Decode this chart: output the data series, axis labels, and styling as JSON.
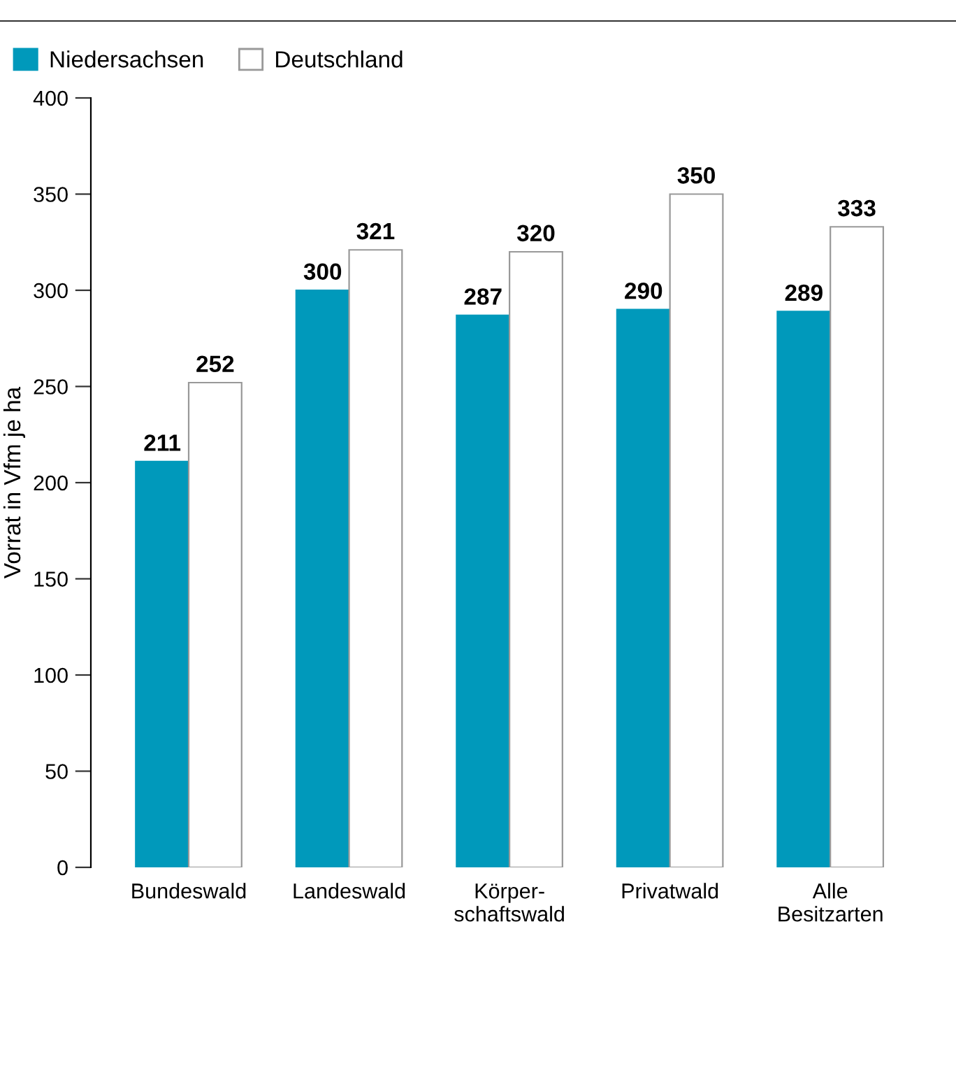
{
  "chart_data": {
    "type": "bar",
    "ylabel": "Vorrat in Vfm je ha",
    "categories": [
      "Bundeswald",
      "Landeswald",
      "Körper-\nschaftswald",
      "Privatwald",
      "Alle\nBesitzarten"
    ],
    "series": [
      {
        "name": "Niedersachsen",
        "color": "#0099bb",
        "values": [
          211,
          300,
          287,
          290,
          289
        ]
      },
      {
        "name": "Deutschland",
        "color": "#ffffff",
        "values": [
          252,
          321,
          320,
          350,
          333
        ]
      }
    ],
    "ylim": [
      0,
      400
    ],
    "yticks": [
      0,
      50,
      100,
      150,
      200,
      250,
      300,
      350,
      400
    ],
    "data_labels": true,
    "legend": "top left",
    "grid": false
  }
}
